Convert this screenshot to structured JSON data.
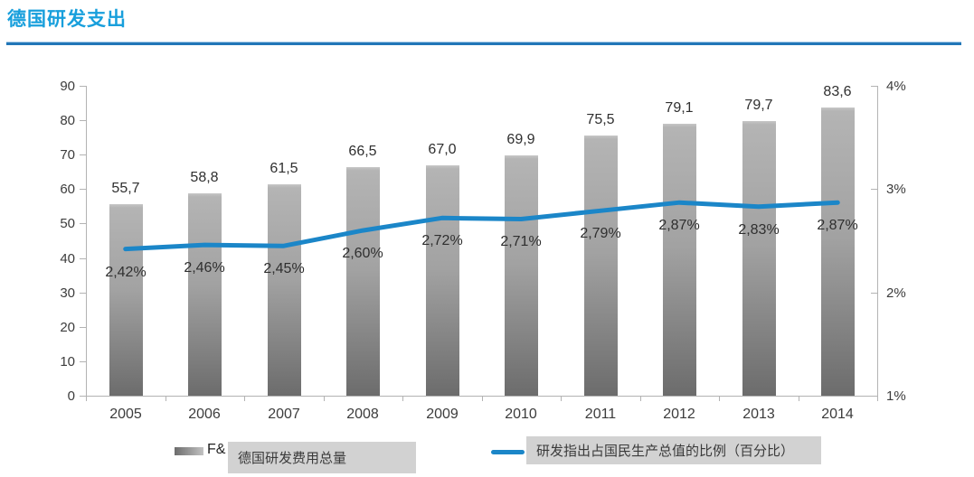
{
  "header": {
    "title": "德国研发支出",
    "title_color": "#189fdc",
    "rule_color": "#2277b8",
    "rule_highlight": "#a9cbe8"
  },
  "chart_data": {
    "type": "bar+line",
    "categories": [
      "2005",
      "2006",
      "2007",
      "2008",
      "2009",
      "2010",
      "2011",
      "2012",
      "2013",
      "2014"
    ],
    "series": [
      {
        "type": "bar",
        "axis": "left",
        "name_visible_partial": "F&",
        "overlay_label": "德国研发费用总量",
        "values": [
          55.7,
          58.8,
          61.5,
          66.5,
          67.0,
          69.9,
          75.5,
          79.1,
          79.7,
          83.6
        ],
        "data_labels": [
          "55,7",
          "58,8",
          "61,5",
          "66,5",
          "67,0",
          "69,9",
          "75,5",
          "79,1",
          "79,7",
          "83,6"
        ],
        "color_top": "#b4b4b4",
        "color_mid": "#a2a2a2",
        "color_bottom": "#6c6c6c"
      },
      {
        "type": "line",
        "axis": "right",
        "overlay_label": "研发指出占国民生产总值的比例（百分比）",
        "values": [
          2.42,
          2.46,
          2.45,
          2.6,
          2.72,
          2.71,
          2.79,
          2.87,
          2.83,
          2.87
        ],
        "data_labels": [
          "2,42%",
          "2,46%",
          "2,45%",
          "2,60%",
          "2,72%",
          "2,71%",
          "2,79%",
          "2,87%",
          "2,83%",
          "2,87%"
        ],
        "color": "#1b86c8"
      }
    ],
    "left_axis": {
      "min": 0,
      "max": 90,
      "step": 10,
      "tick_labels": [
        "0",
        "10",
        "20",
        "30",
        "40",
        "50",
        "60",
        "70",
        "80",
        "90"
      ]
    },
    "right_axis": {
      "min": 1,
      "max": 4,
      "step": 1,
      "tick_labels": [
        "1%",
        "2%",
        "3%",
        "4%"
      ]
    },
    "grid": false,
    "legend_position": "bottom",
    "axis_color": "#b3b3b3"
  },
  "legend": {
    "bar_partial_label": "F&",
    "bar_overlay_text": "德国研发费用总量",
    "line_overlay_text": "研发指出占国民生产总值的比例（百分比）"
  }
}
